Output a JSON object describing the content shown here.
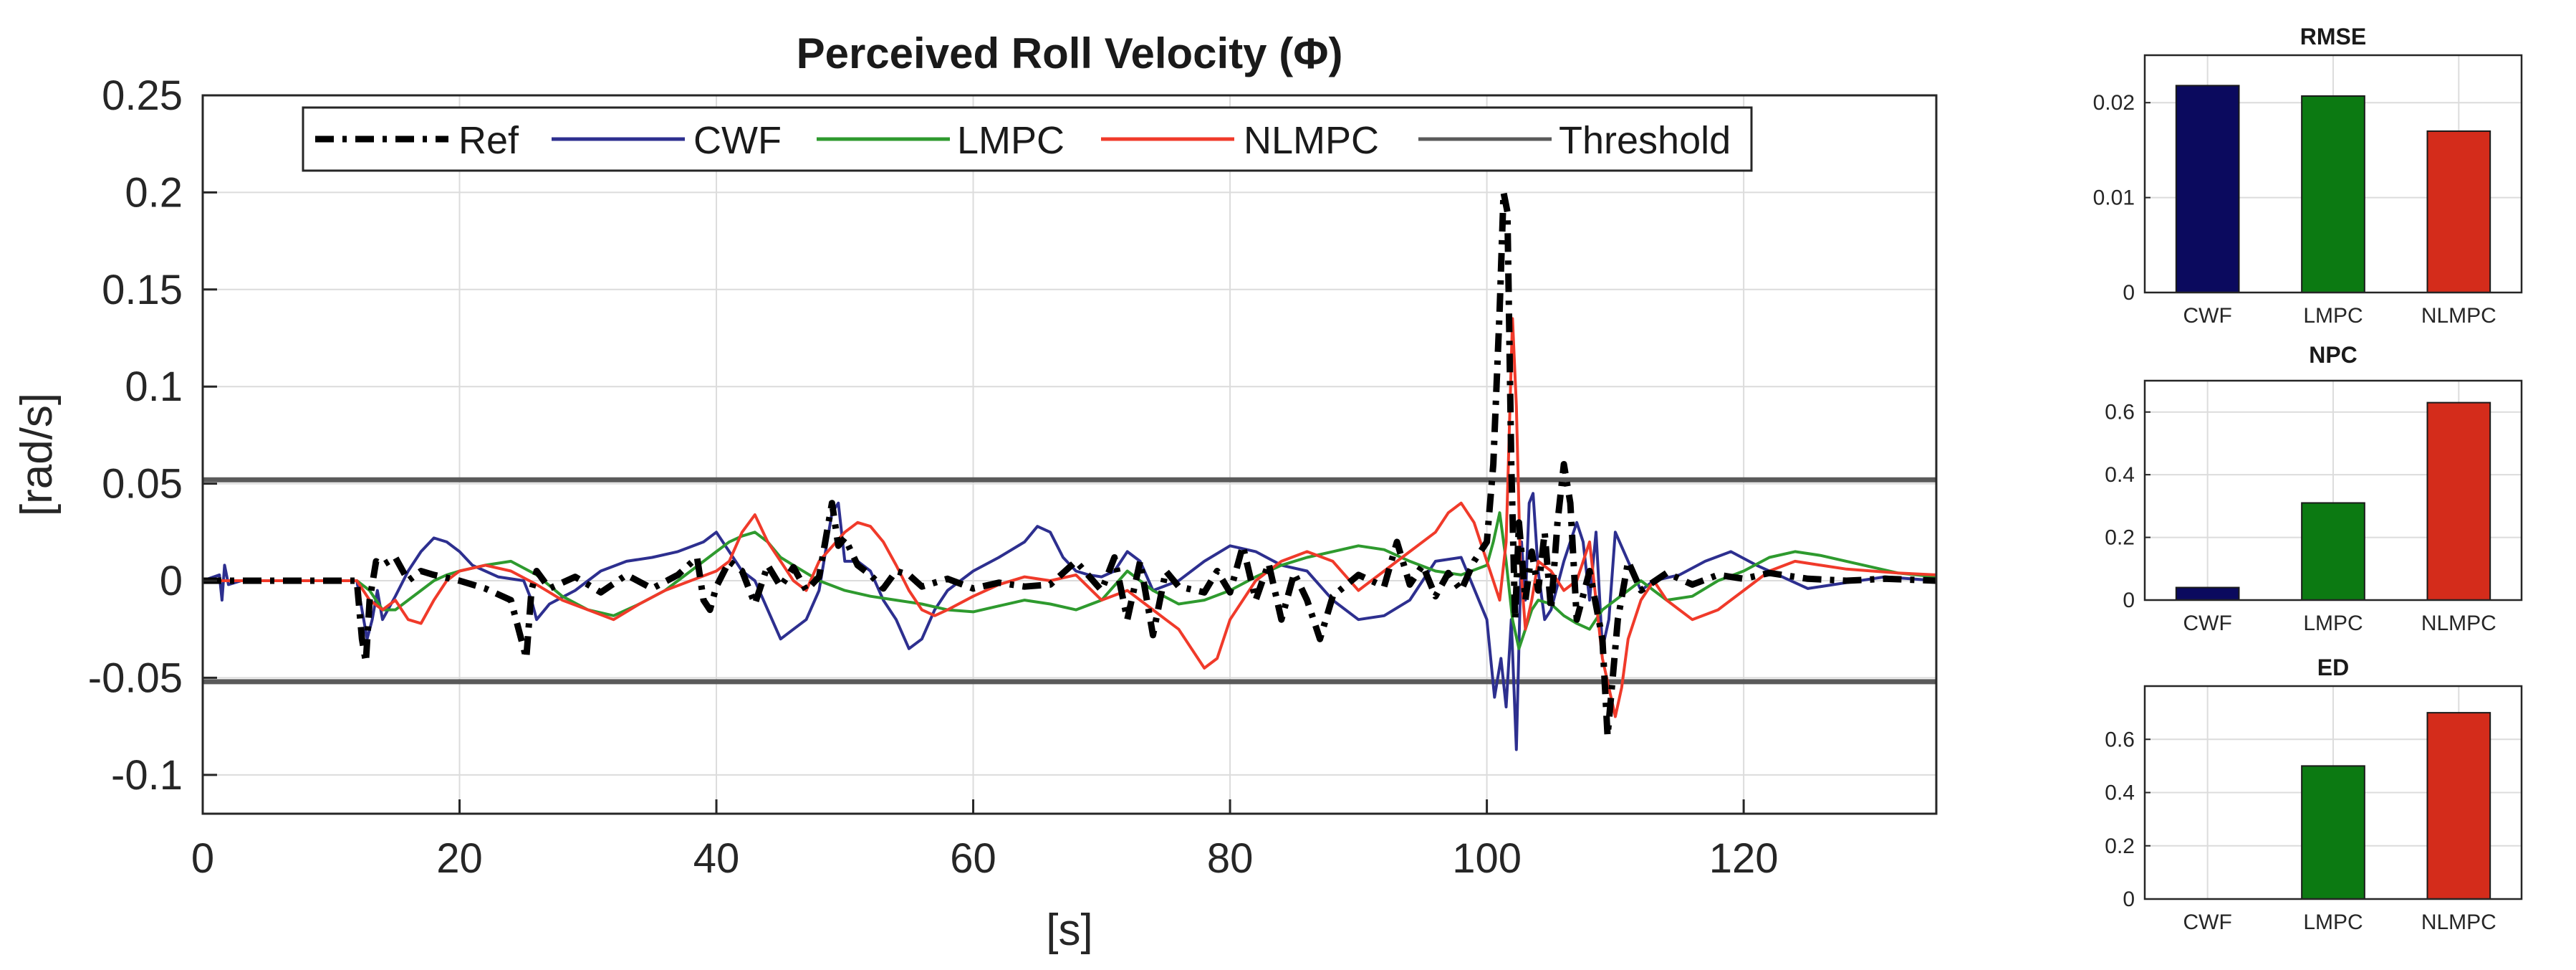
{
  "colors": {
    "ref": "#000000",
    "cwf": "#2d2f8f",
    "lmpc": "#2e9a2e",
    "nlmpc": "#f03a2a",
    "threshold": "#5a5a5a",
    "bar_cwf": "#0b0a5e",
    "bar_lmpc": "#0c7a12",
    "bar_nlmpc": "#d42c1b",
    "grid": "#dcdcdc",
    "axis": "#262626"
  },
  "chart_data": [
    {
      "type": "line",
      "title": "Perceived Roll Velocity (Φ)",
      "xlabel": "[s]",
      "ylabel": "[rad/s]",
      "xlim": [
        0,
        135
      ],
      "ylim": [
        -0.12,
        0.25
      ],
      "xticks": [
        0,
        20,
        40,
        60,
        80,
        100,
        120
      ],
      "xtick_labels": [
        "0",
        "20",
        "40",
        "60",
        "80",
        "100",
        "120"
      ],
      "yticks": [
        -0.1,
        -0.05,
        0,
        0.05,
        0.1,
        0.15,
        0.2,
        0.25
      ],
      "ytick_labels": [
        "-0.1",
        "-0.05",
        "0",
        "0.05",
        "0.1",
        "0.15",
        "0.2",
        "0.25"
      ],
      "grid": true,
      "legend_position": "top",
      "threshold": [
        0.052,
        -0.052
      ],
      "series": [
        {
          "name": "Ref",
          "color_key": "ref",
          "style": "dashdot",
          "x": [
            0,
            12,
            12.4,
            12.7,
            13,
            13.5,
            14,
            15,
            16,
            17,
            18,
            20,
            22,
            24,
            25.2,
            25.6,
            26,
            27,
            29,
            31,
            33,
            35,
            37,
            38.5,
            39,
            39.5,
            40,
            41,
            42,
            43,
            44,
            45,
            46,
            47,
            48,
            49,
            49.5,
            50,
            51,
            52,
            53,
            54,
            55,
            56,
            58,
            60,
            62,
            64,
            66,
            68,
            70,
            71,
            72,
            73,
            74,
            75,
            76,
            78,
            79,
            80,
            81,
            82,
            83,
            84,
            85,
            86,
            87,
            88,
            90,
            92,
            93,
            94,
            95,
            96,
            97,
            98,
            99,
            100,
            100.5,
            101,
            101.3,
            101.6,
            101.9,
            102.2,
            102.5,
            103,
            103.5,
            104,
            104.5,
            105,
            105.5,
            106,
            106.5,
            107,
            108,
            109,
            109.4,
            109.8,
            110.2,
            111,
            112,
            114,
            116,
            118,
            120,
            122,
            125,
            128,
            131,
            135
          ],
          "y": [
            0,
            0,
            -0.03,
            -0.042,
            -0.01,
            0.01,
            0.008,
            0.012,
            0,
            0.005,
            0.003,
            0,
            -0.004,
            -0.01,
            -0.04,
            -0.005,
            0.005,
            -0.004,
            0.002,
            -0.006,
            0.003,
            -0.004,
            0.003,
            0.012,
            -0.01,
            -0.015,
            -0.003,
            0.01,
            0.005,
            -0.012,
            0.008,
            -0.003,
            0.007,
            -0.005,
            0.002,
            0.04,
            0.018,
            0.022,
            0.008,
            0.003,
            -0.004,
            0.005,
            0.003,
            -0.003,
            0.001,
            -0.004,
            -0.001,
            -0.003,
            -0.002,
            0.01,
            -0.005,
            0.012,
            -0.02,
            0.01,
            -0.028,
            0.005,
            -0.003,
            -0.006,
            0.005,
            -0.006,
            0.018,
            -0.01,
            0.009,
            -0.02,
            0.004,
            -0.01,
            -0.03,
            -0.008,
            0.003,
            -0.003,
            0.02,
            -0.002,
            0.008,
            -0.008,
            0.004,
            -0.005,
            0.01,
            0.02,
            0.06,
            0.14,
            0.2,
            0.19,
            0.06,
            -0.02,
            0.03,
            -0.01,
            0.015,
            -0.005,
            0.025,
            -0.015,
            0.03,
            0.06,
            0.04,
            -0.02,
            0.005,
            -0.03,
            -0.08,
            -0.05,
            -0.02,
            0.01,
            -0.005,
            0.004,
            -0.002,
            0.003,
            0.001,
            0.004,
            0.001,
            0,
            0.001,
            0
          ]
        },
        {
          "name": "CWF",
          "color_key": "cwf",
          "style": "solid",
          "x": [
            0,
            1.3,
            1.5,
            1.7,
            2,
            3,
            12,
            12.8,
            13.2,
            13.6,
            14,
            15,
            16,
            17,
            18,
            19,
            20,
            21,
            22,
            23,
            25,
            25.6,
            26,
            27,
            29,
            31,
            33,
            35,
            37,
            39,
            40,
            41,
            42,
            43,
            44,
            45,
            46,
            47,
            48,
            49,
            49.5,
            50,
            51,
            52,
            53,
            54,
            55,
            56,
            57,
            58,
            60,
            62,
            64,
            65,
            66,
            67,
            68,
            69,
            70,
            71,
            72,
            73,
            74,
            76,
            78,
            80,
            82,
            84,
            86,
            88,
            90,
            92,
            94,
            96,
            98,
            100,
            100.6,
            101.1,
            101.5,
            101.9,
            102.3,
            102.7,
            103,
            103.3,
            103.6,
            104,
            104.5,
            105,
            106,
            107,
            107.5,
            108,
            108.5,
            109,
            109.5,
            110,
            111,
            112,
            113,
            115,
            117,
            119,
            121,
            123,
            125,
            128,
            131,
            135
          ],
          "y": [
            0,
            0.003,
            -0.01,
            0.008,
            -0.002,
            0,
            0,
            -0.03,
            -0.02,
            -0.005,
            -0.02,
            -0.008,
            0.005,
            0.015,
            0.022,
            0.02,
            0.015,
            0.008,
            0.005,
            0.002,
            0,
            -0.01,
            -0.02,
            -0.012,
            -0.005,
            0.005,
            0.01,
            0.012,
            0.015,
            0.02,
            0.025,
            0.015,
            0.005,
            0,
            -0.015,
            -0.03,
            -0.025,
            -0.02,
            -0.005,
            0.035,
            0.04,
            0.01,
            0.01,
            0.005,
            -0.01,
            -0.02,
            -0.035,
            -0.03,
            -0.015,
            -0.005,
            0.005,
            0.012,
            0.02,
            0.028,
            0.025,
            0.012,
            0.005,
            0.003,
            0.002,
            0.005,
            0.015,
            0.01,
            -0.005,
            0,
            0.01,
            0.018,
            0.015,
            0.008,
            0.005,
            -0.01,
            -0.02,
            -0.018,
            -0.01,
            0.01,
            0.012,
            -0.02,
            -0.06,
            -0.04,
            -0.065,
            -0.02,
            -0.087,
            0.02,
            -0.01,
            0.04,
            0.045,
            0.005,
            -0.02,
            -0.015,
            0.01,
            0.03,
            0.02,
            -0.01,
            0.025,
            -0.035,
            -0.02,
            0.025,
            0.01,
            -0.005,
            0,
            0.003,
            0.01,
            0.015,
            0.008,
            0.002,
            -0.004,
            -0.001,
            0.002,
            0
          ]
        },
        {
          "name": "LMPC",
          "color_key": "lmpc",
          "style": "solid",
          "x": [
            0,
            11,
            12,
            13,
            14,
            15,
            16,
            17,
            18,
            19,
            20,
            22,
            24,
            26,
            28,
            30,
            32,
            34,
            36,
            38,
            40,
            41,
            42,
            43,
            44,
            45,
            46,
            48,
            50,
            52,
            54,
            56,
            58,
            60,
            62,
            64,
            66,
            68,
            70,
            72,
            74,
            76,
            78,
            80,
            82,
            84,
            86,
            88,
            90,
            92,
            94,
            96,
            98,
            100,
            100.5,
            101,
            101.5,
            102,
            102.5,
            103,
            103.5,
            104,
            105,
            106,
            107,
            108,
            109,
            110,
            111,
            112,
            113,
            114,
            116,
            118,
            120,
            122,
            124,
            126,
            128,
            130,
            132,
            135
          ],
          "y": [
            0,
            0,
            0,
            -0.005,
            -0.015,
            -0.015,
            -0.01,
            -0.005,
            0,
            0.003,
            0.005,
            0.008,
            0.01,
            0.003,
            -0.008,
            -0.015,
            -0.018,
            -0.012,
            -0.005,
            0.005,
            0.015,
            0.02,
            0.023,
            0.025,
            0.02,
            0.012,
            0.008,
            0,
            -0.005,
            -0.008,
            -0.01,
            -0.012,
            -0.015,
            -0.016,
            -0.013,
            -0.01,
            -0.012,
            -0.015,
            -0.01,
            0.005,
            -0.005,
            -0.012,
            -0.01,
            -0.005,
            0.002,
            0.008,
            0.012,
            0.015,
            0.018,
            0.016,
            0.01,
            0.005,
            0.003,
            0.008,
            0.02,
            0.035,
            0.01,
            -0.02,
            -0.035,
            -0.025,
            -0.015,
            -0.01,
            -0.012,
            -0.018,
            -0.022,
            -0.025,
            -0.015,
            -0.01,
            -0.005,
            0,
            -0.005,
            -0.01,
            -0.008,
            0,
            0.005,
            0.012,
            0.015,
            0.013,
            0.01,
            0.007,
            0.004,
            0.002
          ]
        },
        {
          "name": "NLMPC",
          "color_key": "nlmpc",
          "style": "solid",
          "x": [
            0,
            12,
            13,
            14,
            15,
            16,
            17,
            18,
            19,
            20,
            22,
            24,
            26,
            28,
            30,
            32,
            34,
            36,
            38,
            40,
            41,
            42,
            43,
            44,
            45,
            46,
            47,
            48,
            50,
            51,
            52,
            53,
            54,
            55,
            56,
            57,
            58,
            60,
            62,
            64,
            66,
            68,
            70,
            72,
            74,
            75,
            76,
            77,
            78,
            79,
            80,
            82,
            84,
            86,
            88,
            90,
            92,
            94,
            96,
            97,
            98,
            99,
            100,
            100.5,
            101,
            101.5,
            102,
            102.3,
            102.6,
            103,
            103.5,
            104,
            105,
            106,
            107,
            108,
            109,
            110,
            110.5,
            111,
            112,
            113,
            114,
            116,
            118,
            120,
            122,
            124,
            126,
            128,
            130,
            132,
            135
          ],
          "y": [
            0,
            0,
            -0.01,
            -0.015,
            -0.01,
            -0.02,
            -0.022,
            -0.01,
            0,
            0.005,
            0.008,
            0.005,
            -0.002,
            -0.01,
            -0.015,
            -0.02,
            -0.012,
            -0.005,
            0,
            0.005,
            0.01,
            0.025,
            0.034,
            0.02,
            0.01,
            0,
            -0.005,
            0.01,
            0.025,
            0.03,
            0.028,
            0.02,
            0.008,
            -0.005,
            -0.015,
            -0.018,
            -0.015,
            -0.008,
            -0.002,
            0.002,
            0,
            0.003,
            -0.01,
            -0.005,
            -0.015,
            -0.02,
            -0.025,
            -0.035,
            -0.045,
            -0.04,
            -0.02,
            0,
            0.01,
            0.015,
            0.01,
            -0.005,
            0.005,
            0.015,
            0.025,
            0.035,
            0.04,
            0.03,
            0.01,
            0,
            -0.01,
            0.02,
            0.135,
            0.09,
            0.01,
            -0.025,
            -0.01,
            0.01,
            0.005,
            -0.005,
            0,
            0.02,
            -0.04,
            -0.07,
            -0.055,
            -0.03,
            -0.01,
            0,
            -0.01,
            -0.02,
            -0.015,
            -0.005,
            0.005,
            0.01,
            0.008,
            0.006,
            0.005,
            0.004,
            0.003
          ]
        },
        {
          "name": "Threshold",
          "color_key": "threshold",
          "style": "solid",
          "x": [],
          "y": []
        }
      ]
    },
    {
      "type": "bar",
      "title": "RMSE",
      "categories": [
        "CWF",
        "LMPC",
        "NLMPC"
      ],
      "values": [
        0.0218,
        0.0207,
        0.017
      ],
      "ylim": [
        0,
        0.025
      ],
      "yticks": [
        0,
        0.01,
        0.02
      ],
      "ytick_labels": [
        "0",
        "0.01",
        "0.02"
      ],
      "grid": true
    },
    {
      "type": "bar",
      "title": "NPC",
      "categories": [
        "CWF",
        "LMPC",
        "NLMPC"
      ],
      "values": [
        0.04,
        0.31,
        0.63
      ],
      "ylim": [
        0,
        0.7
      ],
      "yticks": [
        0,
        0.2,
        0.4,
        0.6
      ],
      "ytick_labels": [
        "0",
        "0.2",
        "0.4",
        "0.6"
      ],
      "grid": true
    },
    {
      "type": "bar",
      "title": "ED",
      "categories": [
        "CWF",
        "LMPC",
        "NLMPC"
      ],
      "values": [
        0,
        0.5,
        0.7
      ],
      "ylim": [
        0,
        0.8
      ],
      "yticks": [
        0,
        0.2,
        0.4,
        0.6
      ],
      "ytick_labels": [
        "0",
        "0.2",
        "0.4",
        "0.6"
      ],
      "grid": true
    }
  ]
}
